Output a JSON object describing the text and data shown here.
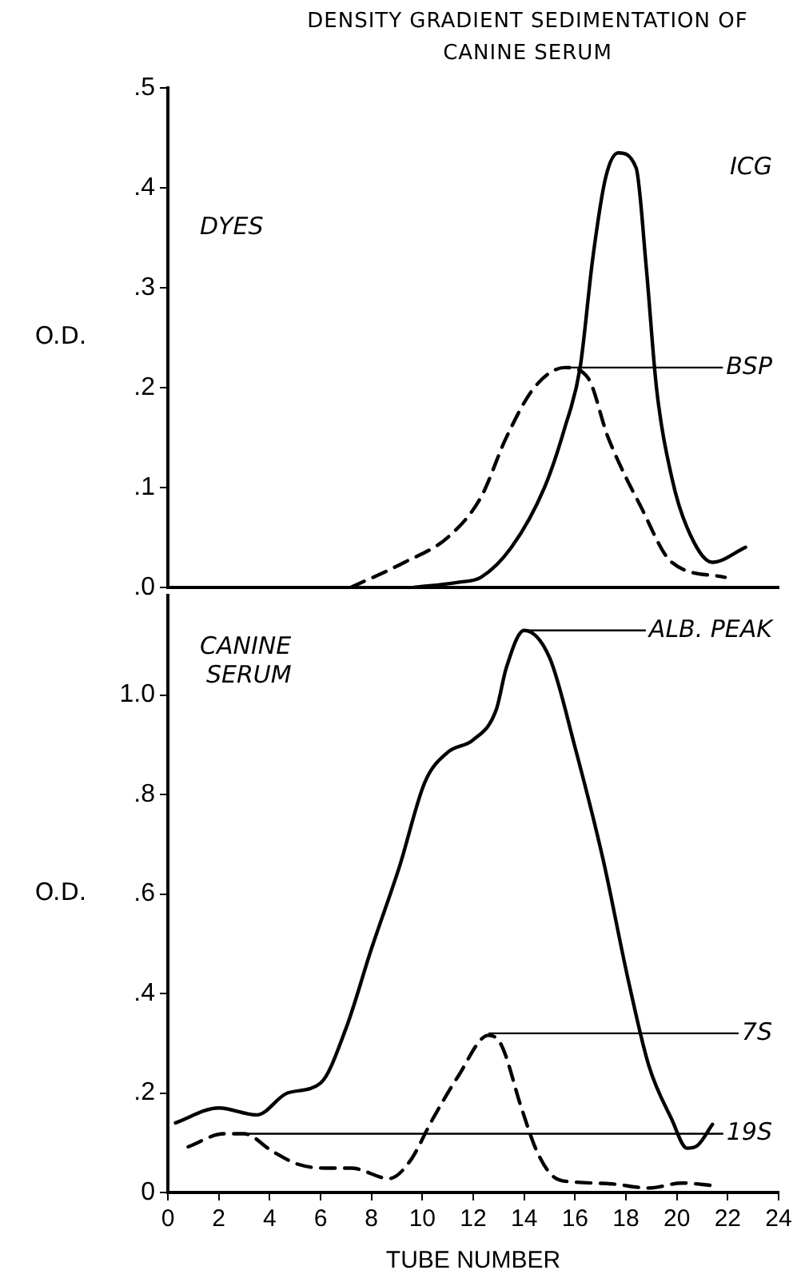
{
  "chart_data": [
    {
      "type": "line",
      "title": "DENSITY GRADIENT SEDIMENTATION OF CANINE SERUM",
      "ylabel": "O.D.",
      "xlim": [
        0,
        24
      ],
      "ylim": [
        0,
        0.5
      ],
      "yticks": [
        {
          "value": 0,
          "label": ".0"
        },
        {
          "value": 0.1,
          "label": ".1"
        },
        {
          "value": 0.2,
          "label": ".2"
        },
        {
          "value": 0.3,
          "label": ".3"
        },
        {
          "value": 0.4,
          "label": ".4"
        },
        {
          "value": 0.5,
          "label": ".5"
        }
      ],
      "tick_labels": "y",
      "grid": false,
      "legend": false,
      "marker": "none",
      "series": [
        {
          "color": "#000000",
          "line_style": "solid",
          "x": [
            9.7,
            11.4,
            12.3,
            13.5,
            14.8,
            15.6,
            16.2,
            16.7,
            17.2,
            17.7,
            18.4,
            18.8,
            19.2,
            19.8,
            20.4,
            21.4,
            22.7
          ],
          "values": [
            0.0,
            0.005,
            0.01,
            0.04,
            0.1,
            0.16,
            0.22,
            0.33,
            0.41,
            0.435,
            0.42,
            0.32,
            0.2,
            0.11,
            0.06,
            0.025,
            0.04
          ]
        },
        {
          "color": "#000000",
          "line_style": "dashed",
          "x": [
            7.2,
            9.3,
            11.0,
            12.3,
            13.3,
            14.4,
            15.6,
            16.5,
            17.3,
            18.6,
            19.8,
            21.9
          ],
          "values": [
            0.0,
            0.025,
            0.05,
            0.09,
            0.15,
            0.2,
            0.22,
            0.21,
            0.15,
            0.08,
            0.025,
            0.01
          ]
        }
      ],
      "annotations": [
        "DYES",
        "ICG",
        {
          "text": "BSP",
          "x": 15.8,
          "y": 0.22
        }
      ]
    },
    {
      "type": "line",
      "xlabel": "TUBE NUMBER",
      "ylabel": "O.D.",
      "xlim": [
        0,
        24
      ],
      "xticks": [
        0,
        2,
        4,
        6,
        8,
        10,
        12,
        14,
        16,
        18,
        20,
        22,
        24
      ],
      "ylim": [
        0,
        1.2
      ],
      "yticks": [
        0,
        {
          "value": 0.2,
          "label": ".2"
        },
        {
          "value": 0.4,
          "label": ".4"
        },
        {
          "value": 0.6,
          "label": ".6"
        },
        {
          "value": 0.8,
          "label": ".8"
        },
        {
          "value": 1.0,
          "label": "1.0"
        }
      ],
      "grid": false,
      "legend": false,
      "marker": "none",
      "series": [
        {
          "color": "#000000",
          "line_style": "solid",
          "x": [
            0.3,
            2.0,
            3.5,
            4.7,
            6.0,
            7.0,
            8.0,
            9.1,
            10.1,
            11.0,
            12.0,
            12.9,
            13.3,
            14.0,
            15.0,
            16.0,
            17.1,
            18.1,
            18.9,
            19.8,
            20.4,
            20.8,
            21.4
          ],
          "values": [
            0.14,
            0.17,
            0.156,
            0.2,
            0.22,
            0.33,
            0.49,
            0.655,
            0.825,
            0.885,
            0.91,
            0.97,
            1.055,
            1.13,
            1.075,
            0.895,
            0.67,
            0.425,
            0.255,
            0.147,
            0.089,
            0.094,
            0.137
          ]
        },
        {
          "color": "#000000",
          "line_style": "dashed",
          "x": [
            0.8,
            2.2,
            3.0,
            4.1,
            5.1,
            6.2,
            7.2,
            8.7,
            9.5,
            10.4,
            11.4,
            12.6,
            13.1,
            13.9,
            14.5,
            15.2,
            16.0,
            17.5,
            18.9,
            20.2,
            21.4
          ],
          "values": [
            0.092,
            0.118,
            0.118,
            0.083,
            0.057,
            0.049,
            0.049,
            0.028,
            0.062,
            0.147,
            0.233,
            0.316,
            0.297,
            0.169,
            0.083,
            0.03,
            0.021,
            0.017,
            0.009,
            0.019,
            0.014
          ]
        }
      ],
      "annotations": [
        "CANINE SERUM",
        {
          "text": "ALB. PEAK",
          "x": 14.0,
          "y": 1.13
        },
        {
          "text": "7S",
          "x": 12.6,
          "y": 0.32
        },
        {
          "text": "19S",
          "x": 3.0,
          "y": 0.118
        }
      ]
    }
  ]
}
